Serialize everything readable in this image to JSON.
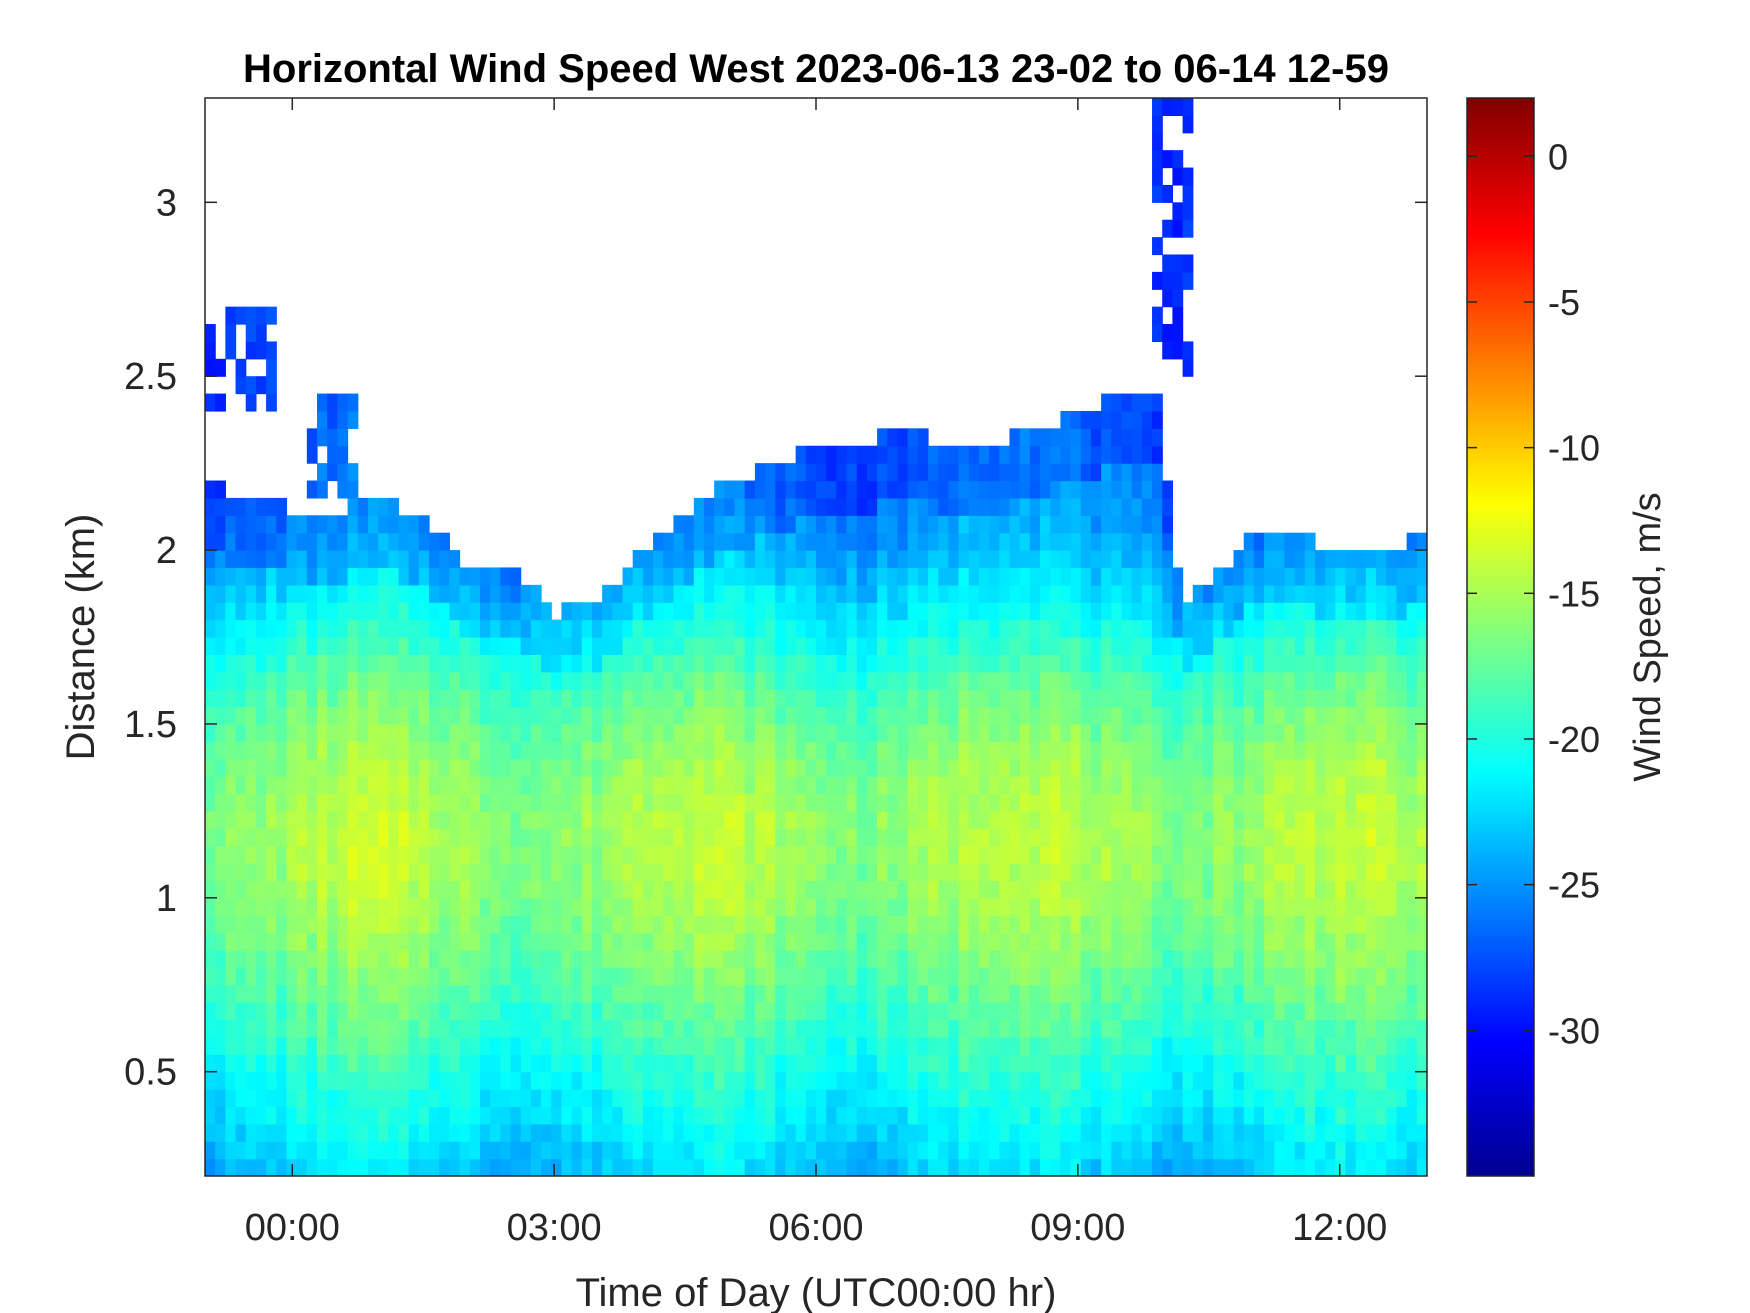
{
  "chart_data": {
    "type": "heatmap",
    "title": "Horizontal Wind Speed West 2023-06-13 23-02 to 06-14 12-59",
    "xlabel": "Time of Day (UTC00:00 hr)",
    "ylabel": "Distance (km)",
    "colorbar_label": "Wind Speed, m/s",
    "xlim_hours": [
      -1,
      13
    ],
    "ylim_km": [
      0.2,
      3.3
    ],
    "clim": [
      -35,
      2
    ],
    "colormap": "jet",
    "x_ticks": [
      {
        "value": 0,
        "label": "00:00"
      },
      {
        "value": 3,
        "label": "03:00"
      },
      {
        "value": 6,
        "label": "06:00"
      },
      {
        "value": 9,
        "label": "09:00"
      },
      {
        "value": 12,
        "label": "12:00"
      }
    ],
    "y_ticks": [
      {
        "value": 0.5,
        "label": "0.5"
      },
      {
        "value": 1,
        "label": "1"
      },
      {
        "value": 1.5,
        "label": "1.5"
      },
      {
        "value": 2,
        "label": "2"
      },
      {
        "value": 2.5,
        "label": "2.5"
      },
      {
        "value": 3,
        "label": "3"
      }
    ],
    "colorbar_ticks": [
      {
        "value": 0,
        "label": "0"
      },
      {
        "value": -5,
        "label": "-5"
      },
      {
        "value": -10,
        "label": "-10"
      },
      {
        "value": -15,
        "label": "-15"
      },
      {
        "value": -20,
        "label": "-20"
      },
      {
        "value": -25,
        "label": "-25"
      },
      {
        "value": -30,
        "label": "-30"
      }
    ],
    "data_top_boundary_km": {
      "time_hours": [
        -1,
        -0.5,
        0,
        0.5,
        1,
        1.5,
        2,
        2.5,
        3,
        3.5,
        4,
        4.5,
        5,
        5.5,
        6,
        6.5,
        7,
        7.5,
        8,
        8.5,
        9,
        9.5,
        9.9,
        10.2,
        10.5,
        11,
        11.5,
        12,
        12.5,
        13
      ],
      "top_km": [
        2.2,
        2.15,
        2.12,
        2.12,
        2.15,
        2.1,
        1.95,
        1.97,
        1.82,
        1.85,
        2.0,
        2.1,
        2.2,
        2.25,
        2.3,
        2.3,
        2.35,
        2.3,
        2.3,
        2.35,
        2.4,
        2.45,
        2.45,
        1.85,
        1.9,
        2.05,
        2.05,
        2.0,
        2.0,
        2.05
      ]
    },
    "upper_patches": [
      {
        "t0_hours": -1,
        "t1_hours": -0.2,
        "z0_km": 2.4,
        "z1_km": 2.7
      },
      {
        "t0_hours": 0.2,
        "t1_hours": 0.8,
        "z0_km": 2.15,
        "z1_km": 2.45
      },
      {
        "t0_hours": 9.9,
        "t1_hours": 10.3,
        "z0_km": 2.5,
        "z1_km": 3.3
      }
    ],
    "speed_profile_m_s": {
      "height_km": [
        0.2,
        0.4,
        0.6,
        0.8,
        1.0,
        1.2,
        1.4,
        1.6,
        1.8,
        2.0,
        2.2,
        2.5,
        2.8,
        3.3
      ],
      "speed": [
        -23,
        -21,
        -19,
        -17,
        -15.5,
        -15,
        -16,
        -18,
        -21,
        -24,
        -25.5,
        -26,
        -26,
        -26
      ]
    }
  }
}
